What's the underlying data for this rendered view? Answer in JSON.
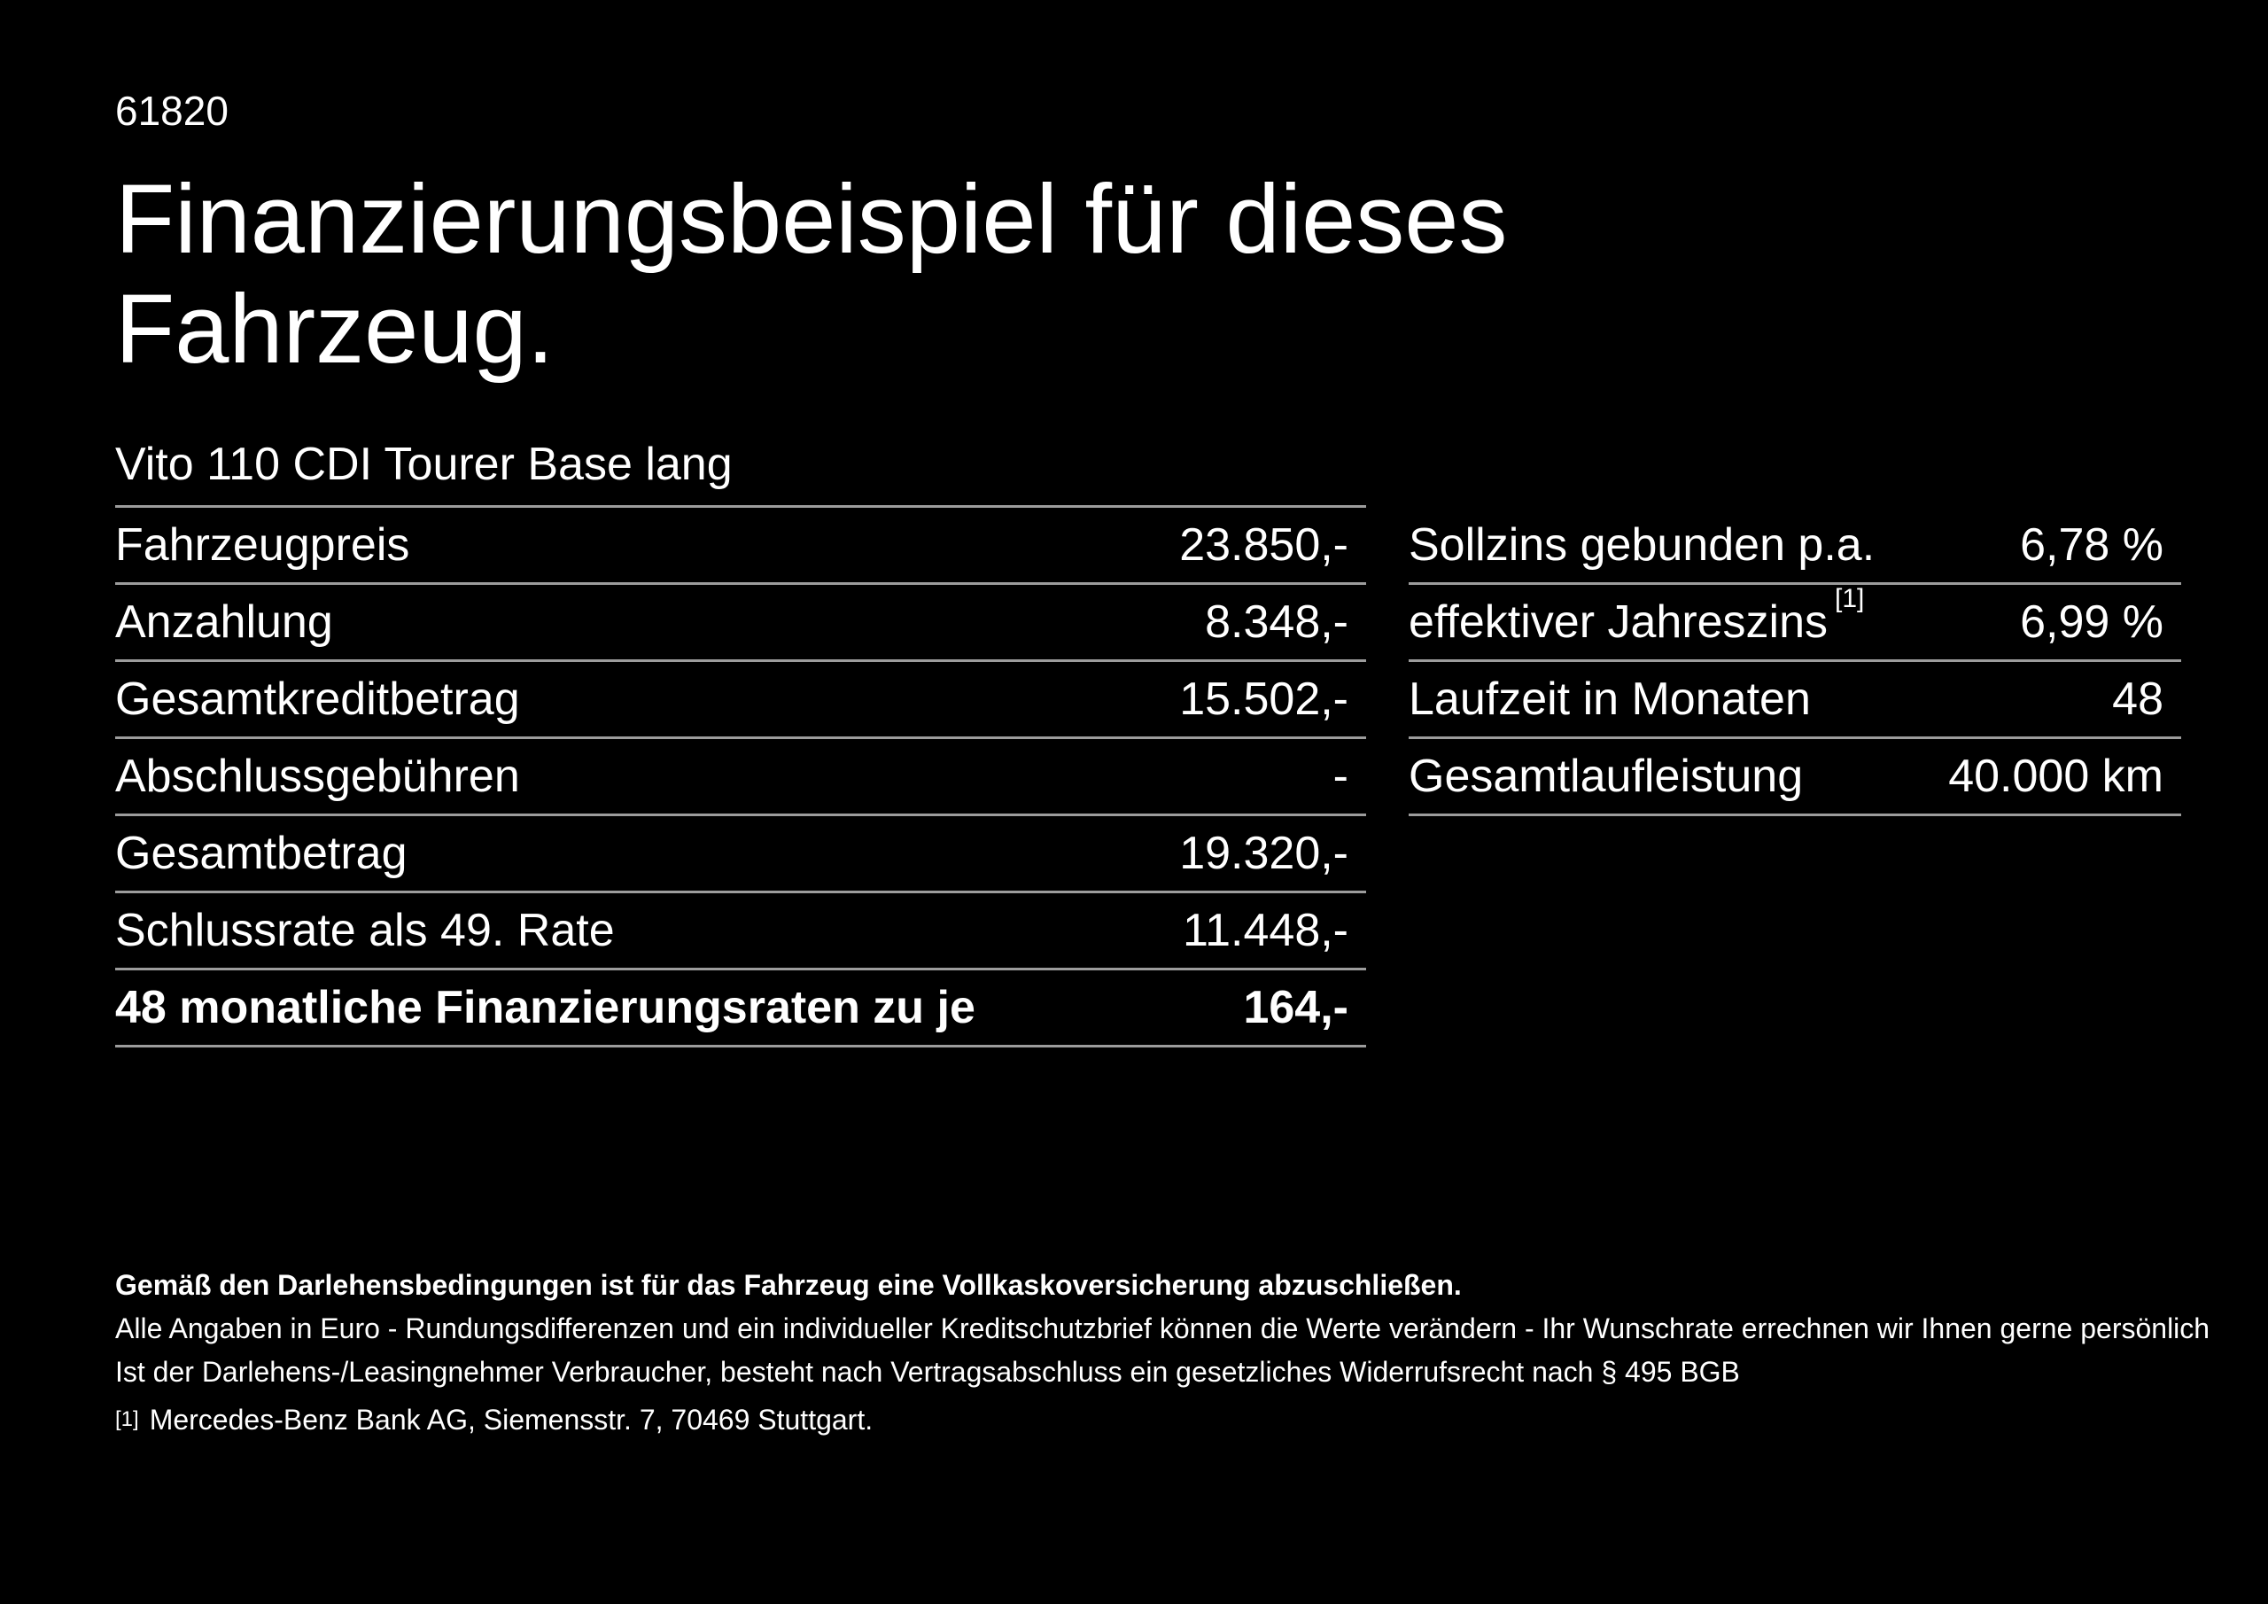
{
  "page": {
    "id_number": "61820",
    "title_line1": "Finanzierungsbeispiel für dieses",
    "title_line2": "Fahrzeug.",
    "vehicle_model": "Vito 110 CDI Tourer Base lang"
  },
  "colors": {
    "background": "#000000",
    "text": "#ffffff",
    "divider": "#9c9c9c"
  },
  "finance_table": {
    "rows": [
      {
        "label": "Fahrzeugpreis",
        "value": "23.850,-"
      },
      {
        "label": "Anzahlung",
        "value": "8.348,-"
      },
      {
        "label": "Gesamtkreditbetrag",
        "value": "15.502,-"
      },
      {
        "label": "Abschlussgebühren",
        "value": "-"
      },
      {
        "label": "Gesamtbetrag",
        "value": "19.320,-"
      },
      {
        "label": "Schlussrate als 49. Rate",
        "value": "11.448,-"
      },
      {
        "label": "48 monatliche Finanzierungsraten zu je",
        "value": "164,-"
      }
    ]
  },
  "conditions_table": {
    "rows": [
      {
        "label": "Sollzins gebunden p.a.",
        "value": "6,78 %"
      },
      {
        "label": "effektiver Jahreszins",
        "footnote_ref": "[1]",
        "value": "6,99 %"
      },
      {
        "label": "Laufzeit in Monaten",
        "value": "48"
      },
      {
        "label": "Gesamtlaufleistung",
        "value": "40.000 km"
      }
    ]
  },
  "footer": {
    "bold_note": "Gemäß den Darlehensbedingungen ist für das Fahrzeug eine Vollkaskoversicherung abzuschließen.",
    "note_line1": "Alle Angaben in Euro - Rundungsdifferenzen und ein individueller Kreditschutzbrief können die Werte verändern - Ihr Wunschrate errechnen wir Ihnen gerne persönlich",
    "note_line2": "Ist der Darlehens-/Leasingnehmer Verbraucher, besteht nach Vertragsabschluss ein gesetzliches Widerrufsrecht nach § 495 BGB",
    "footnote_marker": "[1]",
    "footnote_text": "Mercedes-Benz Bank AG, Siemensstr. 7, 70469 Stuttgart."
  }
}
